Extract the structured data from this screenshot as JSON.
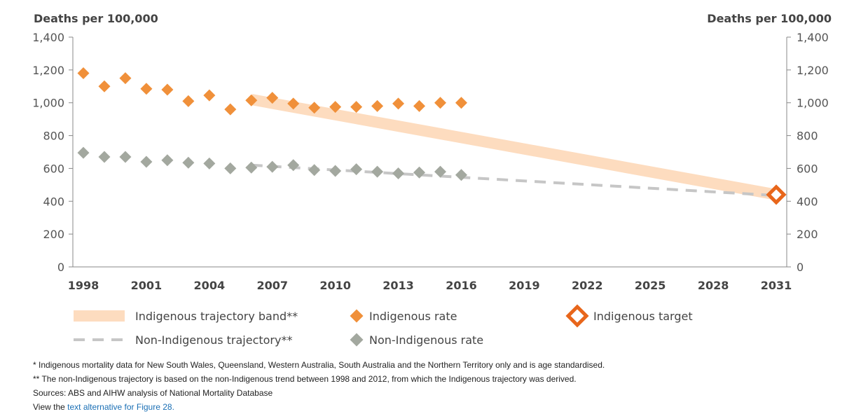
{
  "chart_data": {
    "type": "scatter",
    "y_axis_left_title": "Deaths per 100,000",
    "y_axis_right_title": "Deaths per 100,000",
    "ylim": [
      0,
      1400
    ],
    "yticks": [
      0,
      200,
      400,
      600,
      800,
      1000,
      1200,
      1400
    ],
    "ytick_labels": [
      "0",
      "200",
      "400",
      "600",
      "800",
      "1,000",
      "1,200",
      "1,400"
    ],
    "xlim": [
      1998,
      2031
    ],
    "xticks": [
      1998,
      2001,
      2004,
      2007,
      2010,
      2013,
      2016,
      2019,
      2022,
      2025,
      2028,
      2031
    ],
    "xtick_labels": [
      "1998",
      "2001",
      "2004",
      "2007",
      "2010",
      "2013",
      "2016",
      "2019",
      "2022",
      "2025",
      "2028",
      "2031"
    ],
    "grid": false,
    "legend_placement": "bottom",
    "series": [
      {
        "name": "Indigenous rate",
        "kind": "points",
        "color": "#f0903a",
        "x": [
          1998,
          1999,
          2000,
          2001,
          2002,
          2003,
          2004,
          2005,
          2006,
          2007,
          2008,
          2009,
          2010,
          2011,
          2012,
          2013,
          2014,
          2015,
          2016
        ],
        "y": [
          1180,
          1100,
          1150,
          1085,
          1080,
          1010,
          1045,
          960,
          1015,
          1030,
          995,
          970,
          975,
          975,
          980,
          995,
          980,
          1000,
          1000
        ]
      },
      {
        "name": "Non-Indigenous rate",
        "kind": "points",
        "color": "#a3a89f",
        "x": [
          1998,
          1999,
          2000,
          2001,
          2002,
          2003,
          2004,
          2005,
          2006,
          2007,
          2008,
          2009,
          2010,
          2011,
          2012,
          2013,
          2014,
          2015,
          2016
        ],
        "y": [
          695,
          670,
          670,
          640,
          650,
          635,
          630,
          600,
          605,
          610,
          620,
          590,
          585,
          595,
          580,
          570,
          575,
          580,
          560
        ]
      },
      {
        "name": "Indigenous trajectory band**",
        "kind": "band",
        "color": "#fddcbf",
        "x": [
          2006,
          2031
        ],
        "y": [
          1020,
          440
        ]
      },
      {
        "name": "Non-Indigenous trajectory**",
        "kind": "dashed-line",
        "color": "#c6c6c6",
        "x": [
          2006,
          2031
        ],
        "y": [
          620,
          435
        ]
      },
      {
        "name": "Indigenous target",
        "kind": "target",
        "color": "#e8661b",
        "x": [
          2031
        ],
        "y": [
          440
        ]
      }
    ]
  },
  "legend": [
    {
      "label": "Indigenous trajectory band**",
      "kind": "band",
      "color": "#fddcbf"
    },
    {
      "label": "Indigenous rate",
      "kind": "diamond",
      "color": "#f0903a"
    },
    {
      "label": "Indigenous target",
      "kind": "target",
      "color": "#e8661b"
    },
    {
      "label": "Non-Indigenous trajectory**",
      "kind": "dashed-line",
      "color": "#c6c6c6"
    },
    {
      "label": "Non-Indigenous rate",
      "kind": "diamond",
      "color": "#a3a89f"
    }
  ],
  "notes": {
    "note1": "* Indigenous mortality data for New South Wales, Queensland, Western Australia, South Australia and the Northern Territory only and is age standardised.",
    "note2": "** The non-Indigenous trajectory is based on the non-Indigenous trend between 1998 and 2012, from which the Indigenous trajectory was derived.",
    "sources": "Sources: ABS and AIHW analysis of National Mortality Database",
    "view_prefix": "View the ",
    "view_link": "text alternative for Figure 28."
  }
}
